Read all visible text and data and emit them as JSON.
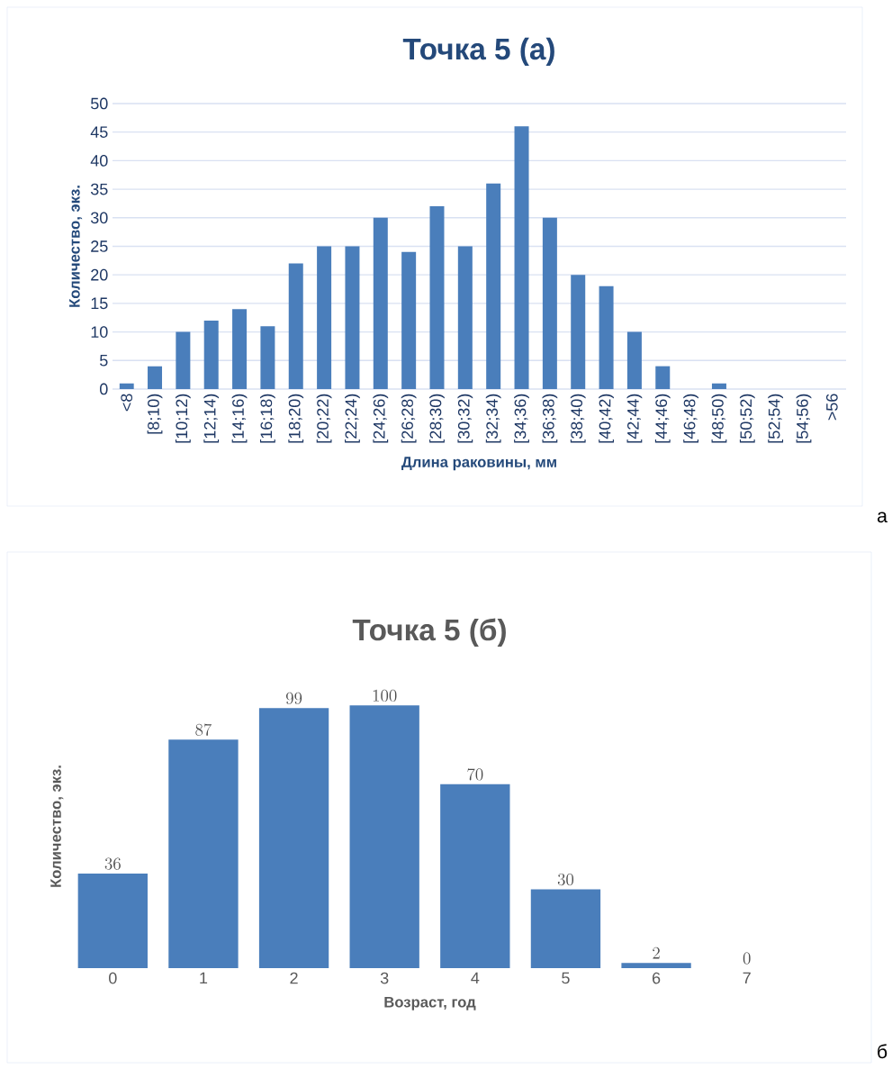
{
  "chart_data": [
    {
      "type": "bar",
      "title": "Точка 5 (а)",
      "xlabel": "Длина раковины, мм",
      "ylabel": "Количество, экз.",
      "categories": [
        "<8",
        "[8;10)",
        "[10;12)",
        "[12;14)",
        "[14;16)",
        "[16;18)",
        "[18;20)",
        "[20;22)",
        "[22;24)",
        "[24;26)",
        "[26;28)",
        "[28;30)",
        "[30;32)",
        "[32;34)",
        "[34;36)",
        "[36;38)",
        "[38;40)",
        "[40;42)",
        "[42;44)",
        "[44;46)",
        "[46;48)",
        "[48;50)",
        "[50;52)",
        "[52;54)",
        "[54;56)",
        ">56"
      ],
      "values": [
        1,
        4,
        10,
        12,
        14,
        11,
        22,
        25,
        25,
        30,
        24,
        32,
        25,
        36,
        46,
        30,
        20,
        18,
        10,
        4,
        0,
        1,
        0,
        0,
        0,
        0
      ],
      "color": "#4a7ebb",
      "ylim": [
        0,
        50
      ],
      "yticks": [
        0,
        5,
        10,
        15,
        20,
        25,
        30,
        35,
        40,
        45,
        50
      ],
      "grid": "y",
      "annotations": [
        "а"
      ]
    },
    {
      "type": "bar",
      "title": "Точка 5 (б)",
      "xlabel": "Возраст, год",
      "ylabel": "Количество, экз.",
      "categories": [
        "0",
        "1",
        "2",
        "3",
        "4",
        "5",
        "6",
        "7"
      ],
      "values": [
        36,
        87,
        99,
        100,
        70,
        30,
        2,
        0
      ],
      "color": "#4a7ebb",
      "data_labels": true,
      "annotations": [
        "б"
      ]
    }
  ]
}
